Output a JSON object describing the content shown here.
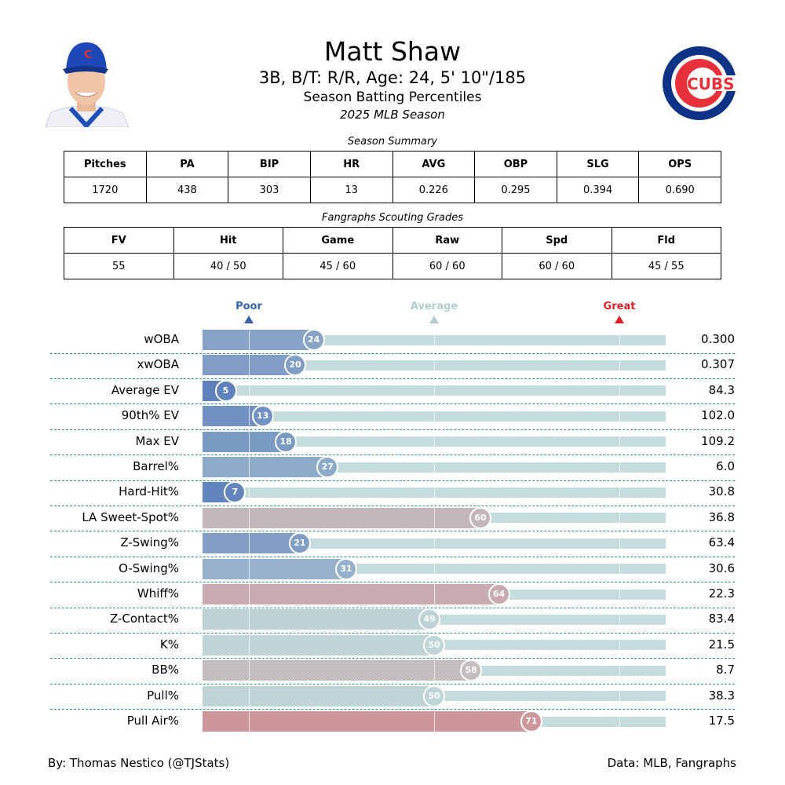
{
  "header": {
    "title": "Matt Shaw",
    "subtitle": "3B, B/T: R/R, Age: 24, 5' 10\"/185",
    "subtitle2": "Season Batting Percentiles",
    "season": "2025 MLB Season",
    "logo_text": "CUBS"
  },
  "summary": {
    "caption": "Season Summary",
    "columns": [
      "Pitches",
      "PA",
      "BIP",
      "HR",
      "AVG",
      "OBP",
      "SLG",
      "OPS"
    ],
    "values": [
      "1720",
      "438",
      "303",
      "13",
      "0.226",
      "0.295",
      "0.394",
      "0.690"
    ]
  },
  "scouting": {
    "caption": "Fangraphs Scouting Grades",
    "columns": [
      "FV",
      "Hit",
      "Game",
      "Raw",
      "Spd",
      "Fld"
    ],
    "values": [
      "55",
      "40 / 50",
      "45 / 60",
      "60 / 60",
      "60 / 60",
      "45 / 55"
    ]
  },
  "chart_data": {
    "type": "bar",
    "orientation": "horizontal",
    "xlim": [
      0,
      100
    ],
    "scale_labels": [
      {
        "text": "Poor",
        "at": 10,
        "color": "#3661ad"
      },
      {
        "text": "Average",
        "at": 50,
        "color": "#b3cccf"
      },
      {
        "text": "Great",
        "at": 90,
        "color": "#d82129"
      }
    ],
    "categories": [
      "wOBA",
      "xwOBA",
      "Average EV",
      "90th% EV",
      "Max EV",
      "Barrel%",
      "Hard-Hit%",
      "LA Sweet-Spot%",
      "Z-Swing%",
      "O-Swing%",
      "Whiff%",
      "Z-Contact%",
      "K%",
      "BB%",
      "Pull%",
      "Pull Air%"
    ],
    "percentiles": [
      24,
      20,
      5,
      13,
      18,
      27,
      7,
      60,
      21,
      31,
      64,
      49,
      50,
      58,
      50,
      71
    ],
    "stat_values": [
      "0.300",
      "0.307",
      "84.3",
      "102.0",
      "109.2",
      "6.0",
      "30.8",
      "36.8",
      "63.4",
      "30.6",
      "22.3",
      "83.4",
      "21.5",
      "8.7",
      "38.3",
      "17.5"
    ],
    "colors": {
      "low": "#3661ad",
      "mid": "#b3cccf",
      "high": "#d82129",
      "track": "#c5dcdc"
    }
  },
  "footer": {
    "left": "By: Thomas Nestico (@TJStats)",
    "right": "Data: MLB, Fangraphs"
  }
}
